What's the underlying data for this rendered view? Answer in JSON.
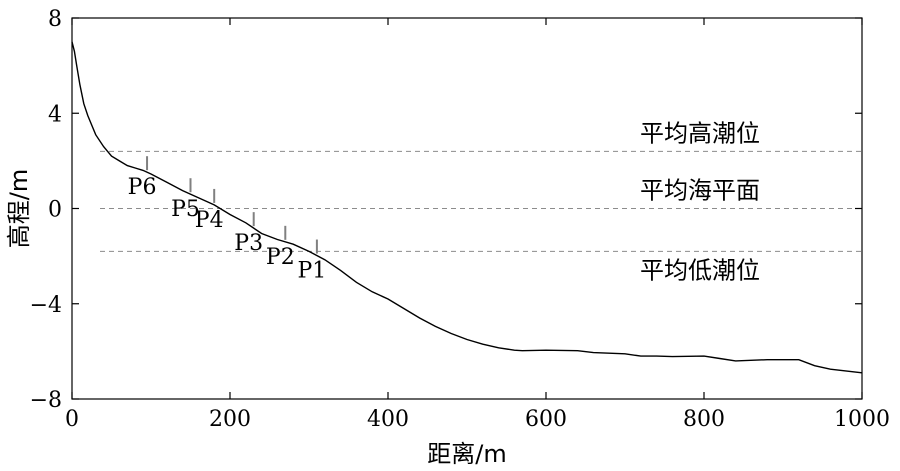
{
  "chart_data": {
    "type": "line",
    "xlabel": "距离/m",
    "ylabel": "高程/m",
    "xlim": [
      0,
      1000
    ],
    "ylim": [
      -8,
      8
    ],
    "xticks": [
      0,
      200,
      400,
      600,
      800,
      1000
    ],
    "yticks": [
      -8,
      -4,
      0,
      4,
      8
    ],
    "grid": false,
    "series": [
      {
        "x": [
          0,
          3,
          6,
          10,
          15,
          20,
          30,
          40,
          50,
          60,
          70,
          80,
          90,
          100,
          120,
          140,
          160,
          180,
          200,
          220,
          240,
          260,
          280,
          300,
          320,
          340,
          360,
          380,
          400,
          420,
          440,
          460,
          480,
          500,
          520,
          540,
          560,
          570,
          600,
          640,
          660,
          700,
          720,
          740,
          760,
          800,
          820,
          840,
          880,
          920,
          940,
          960,
          1000
        ],
        "y": [
          7.0,
          6.6,
          6.0,
          5.2,
          4.4,
          3.9,
          3.1,
          2.6,
          2.2,
          2.0,
          1.8,
          1.7,
          1.6,
          1.45,
          1.1,
          0.75,
          0.45,
          0.15,
          -0.25,
          -0.6,
          -1.05,
          -1.3,
          -1.5,
          -1.8,
          -2.15,
          -2.6,
          -3.1,
          -3.5,
          -3.8,
          -4.2,
          -4.6,
          -4.95,
          -5.25,
          -5.5,
          -5.7,
          -5.85,
          -5.95,
          -5.97,
          -5.95,
          -5.97,
          -6.05,
          -6.1,
          -6.2,
          -6.2,
          -6.22,
          -6.2,
          -6.3,
          -6.4,
          -6.35,
          -6.35,
          -6.6,
          -6.75,
          -6.9
        ]
      }
    ],
    "reference_lines": [
      {
        "label": "平均高潮位",
        "y": 2.4
      },
      {
        "label": "平均海平面",
        "y": 0
      },
      {
        "label": "平均低潮位",
        "y": -1.8
      }
    ],
    "points": [
      {
        "label": "P6",
        "x": 95
      },
      {
        "label": "P5",
        "x": 150
      },
      {
        "label": "P4",
        "x": 180
      },
      {
        "label": "P3",
        "x": 230
      },
      {
        "label": "P2",
        "x": 270
      },
      {
        "label": "P1",
        "x": 310
      }
    ]
  }
}
